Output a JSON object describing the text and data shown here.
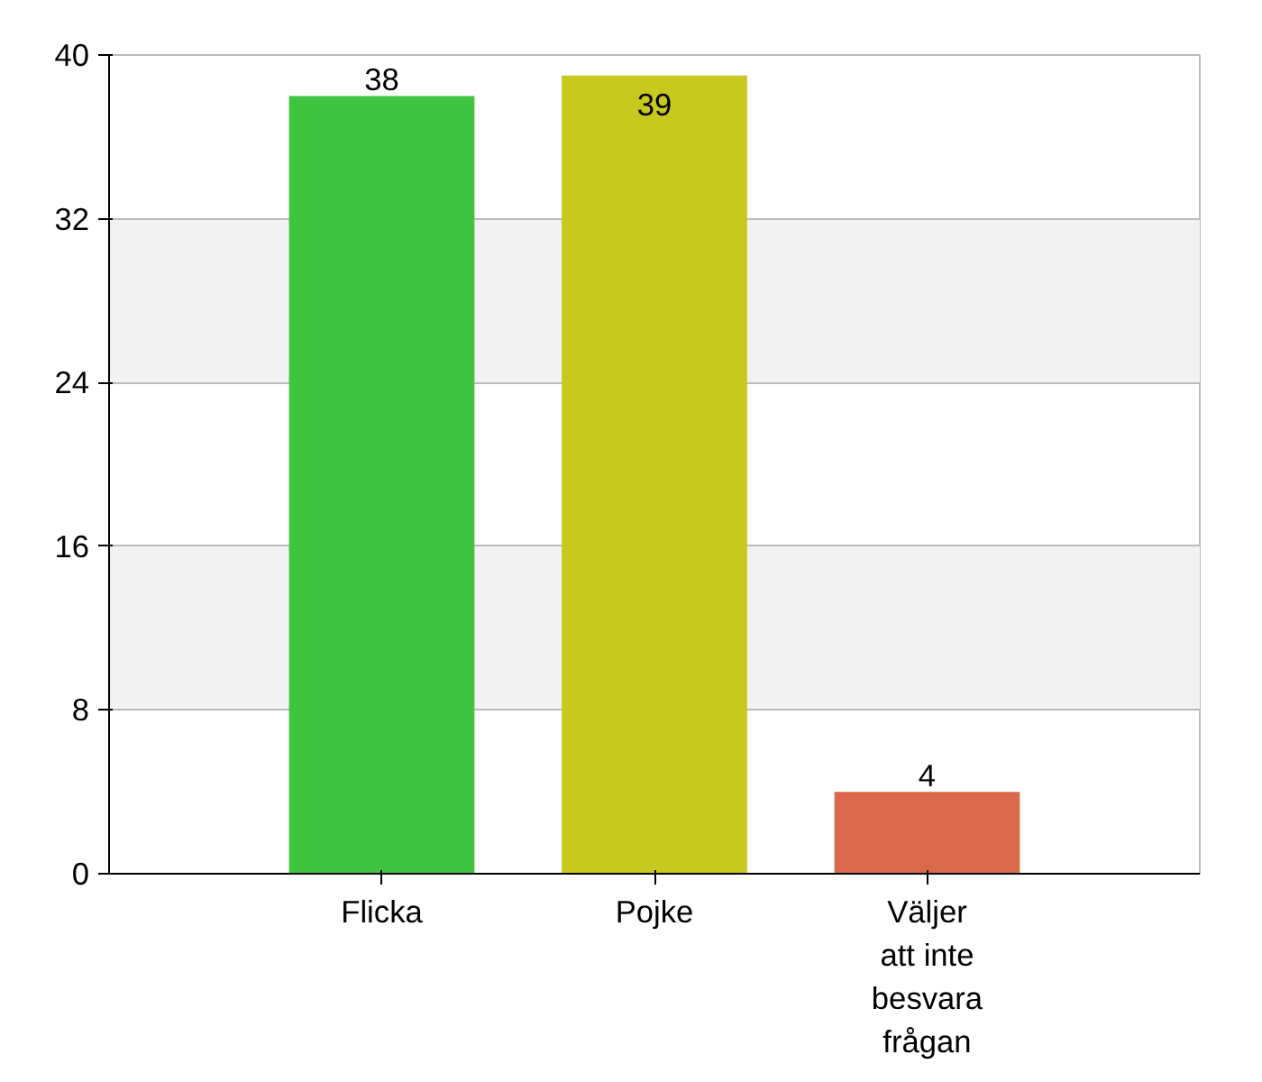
{
  "chart_data": {
    "type": "bar",
    "categories": [
      "Flicka",
      "Pojke",
      "Väljer att inte besvara frågan"
    ],
    "values": [
      38,
      39,
      4
    ],
    "colors": [
      "#3fc43f",
      "#c8c81e",
      "#d9694a"
    ],
    "ylim": [
      0,
      40
    ],
    "yticks": [
      0,
      8,
      16,
      24,
      32,
      40
    ],
    "grid": "y",
    "data_labels": true
  }
}
